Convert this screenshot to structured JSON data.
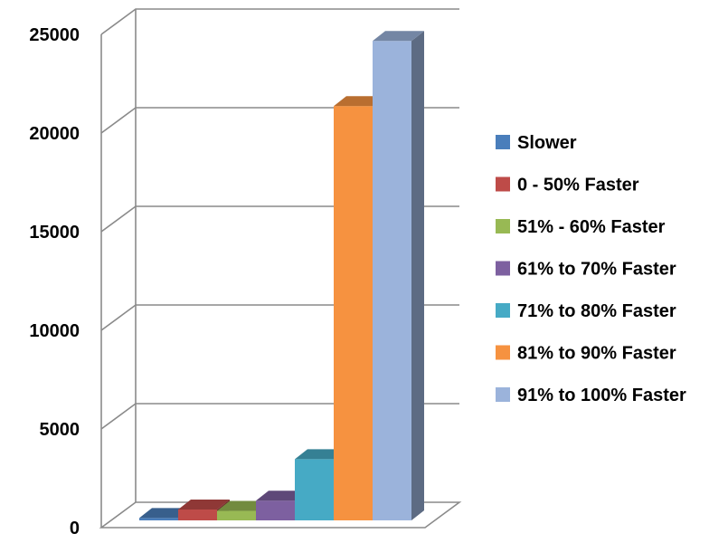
{
  "chart_data": {
    "type": "bar",
    "style": "3d-clustered-column",
    "title": "",
    "xlabel": "",
    "ylabel": "",
    "ylim": [
      0,
      25000
    ],
    "yticks": [
      0,
      5000,
      10000,
      15000,
      20000,
      25000
    ],
    "ytick_labels": [
      "0",
      "5000",
      "10000",
      "15000",
      "20000",
      "25000"
    ],
    "grid": true,
    "legend_position": "right",
    "series": [
      {
        "name": "Slower",
        "values": [
          120
        ],
        "color": "#4a7ebb"
      },
      {
        "name": "0 - 50% Faster",
        "values": [
          550
        ],
        "color": "#be4b48"
      },
      {
        "name": "51% - 60% Faster",
        "values": [
          480
        ],
        "color": "#98b954"
      },
      {
        "name": "61% to 70% Faster",
        "values": [
          1000
        ],
        "color": "#7d60a0"
      },
      {
        "name": "71% to 80% Faster",
        "values": [
          3100
        ],
        "color": "#46aac5"
      },
      {
        "name": "81% to 90% Faster",
        "values": [
          21000
        ],
        "color": "#f69240"
      },
      {
        "name": "91% to 100% Faster",
        "values": [
          24300
        ],
        "color": "#9bb3db"
      }
    ]
  }
}
